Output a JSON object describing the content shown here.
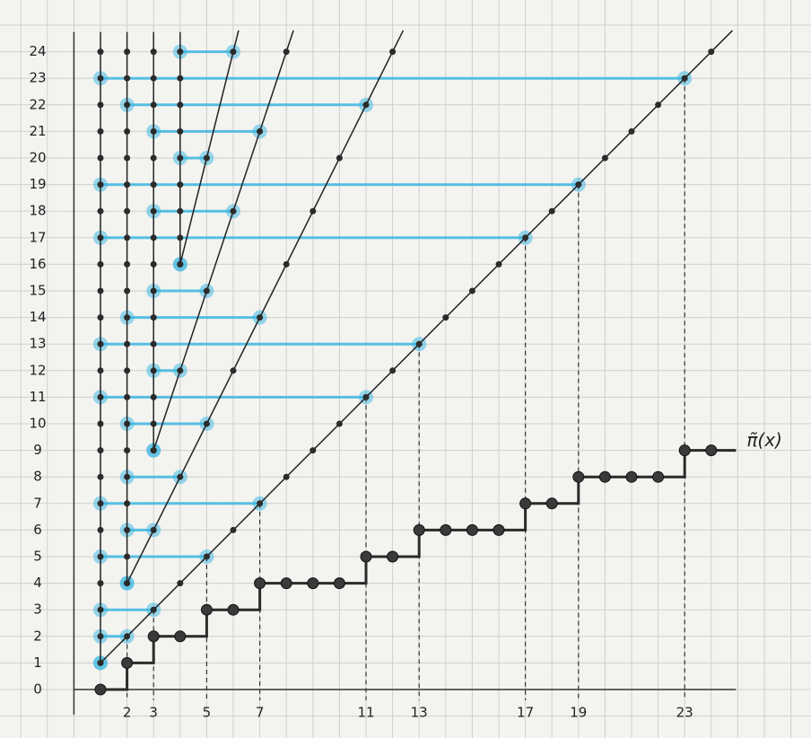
{
  "chart_data": {
    "type": "step",
    "x": [
      1,
      2,
      3,
      4,
      5,
      6,
      7,
      8,
      9,
      10,
      11,
      12,
      13,
      14,
      15,
      16,
      17,
      18,
      19,
      20,
      21,
      22,
      23,
      24
    ],
    "series": [
      {
        "name": "π̃(x)",
        "color": "#2b2b2b",
        "values": [
          0,
          1,
          2,
          2,
          3,
          3,
          4,
          4,
          4,
          4,
          5,
          5,
          6,
          6,
          6,
          6,
          7,
          7,
          8,
          8,
          8,
          8,
          9,
          9
        ]
      }
    ],
    "xlim": [
      0,
      25
    ],
    "ylim": [
      0,
      24
    ],
    "xticks": [
      2,
      3,
      5,
      7,
      11,
      13,
      17,
      19,
      23
    ],
    "yticks": [
      0,
      1,
      2,
      3,
      4,
      5,
      6,
      7,
      8,
      9,
      10,
      11,
      12,
      13,
      14,
      15,
      16,
      17,
      18,
      19,
      20,
      21,
      22,
      23,
      24
    ],
    "grid": true
  }
}
